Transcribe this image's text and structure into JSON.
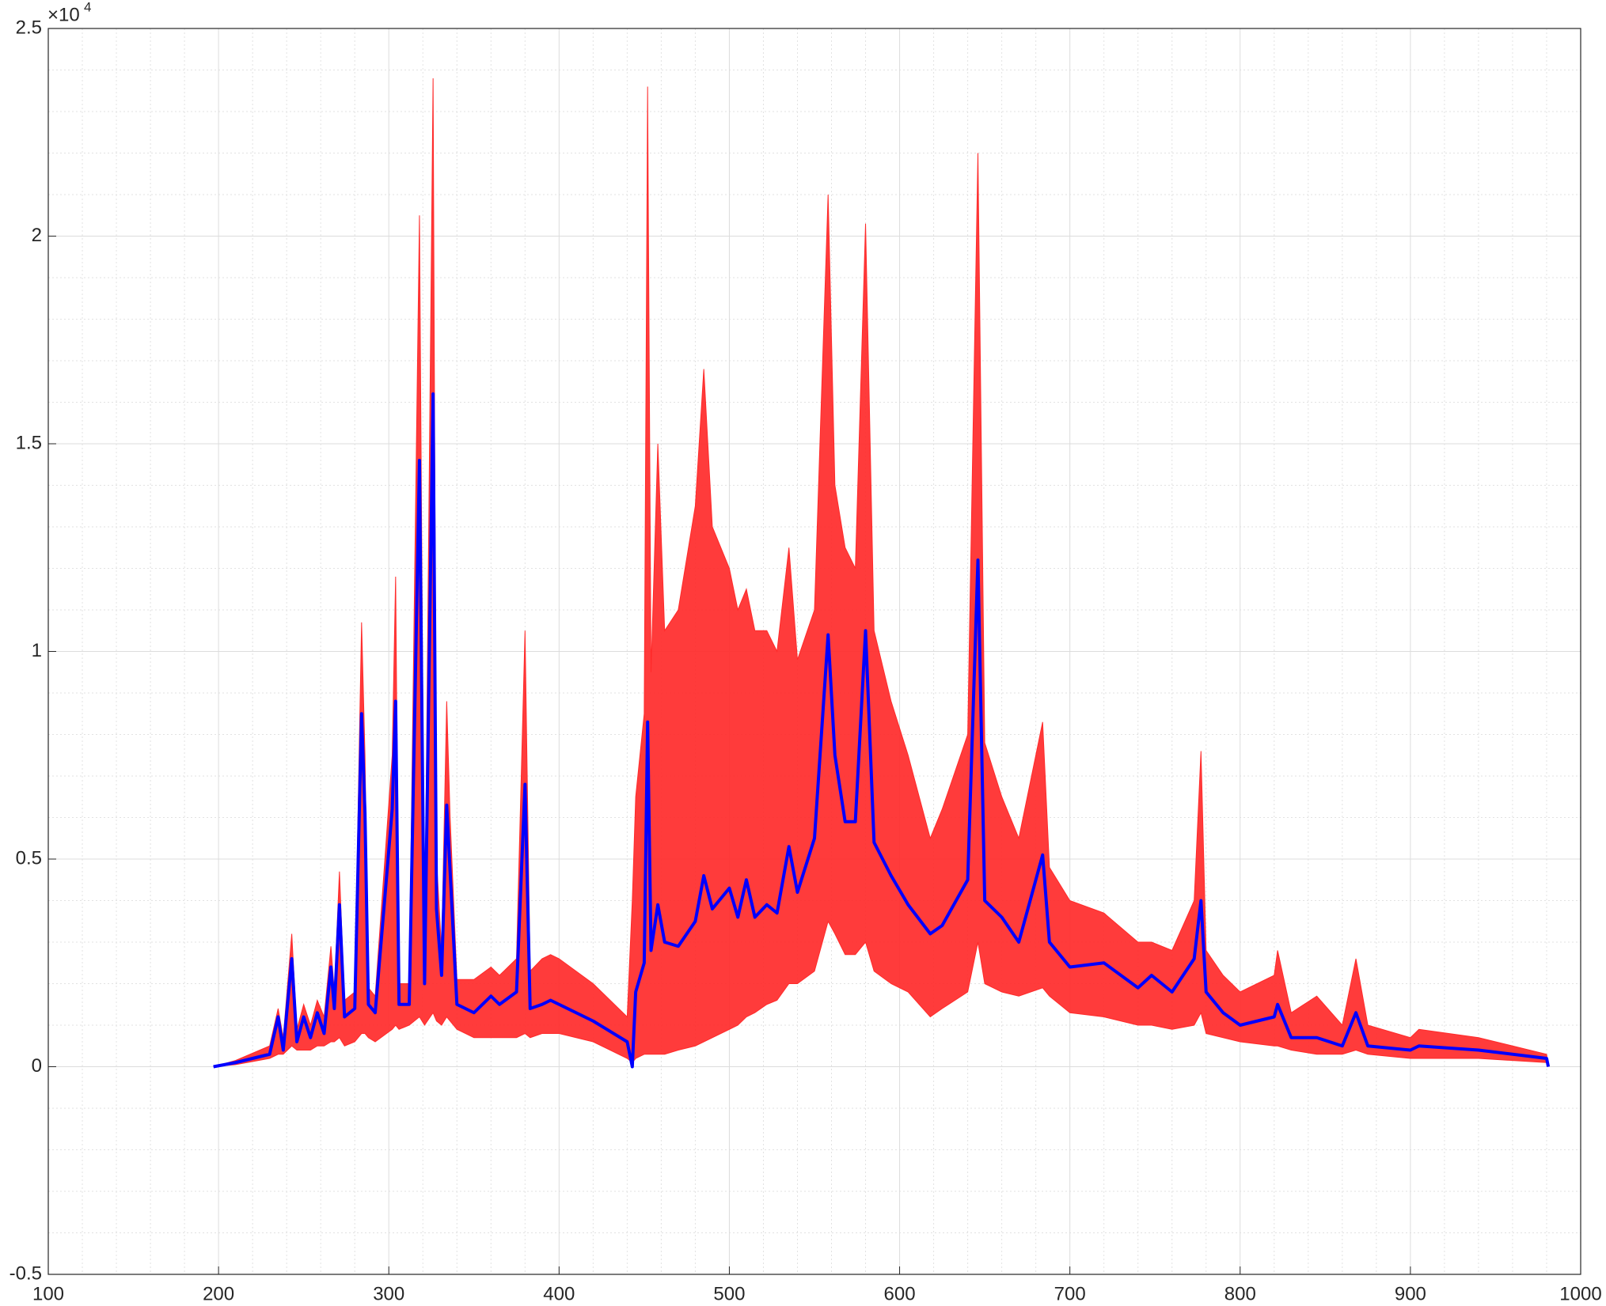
{
  "chart_data": {
    "type": "line",
    "y_multiplier": {
      "base": "×10",
      "exponent": "4"
    },
    "x": [
      197,
      210,
      230,
      235,
      238,
      243,
      246,
      250,
      254,
      258,
      262,
      266,
      268,
      271,
      274,
      280,
      284,
      286,
      288,
      292,
      302,
      304,
      306,
      312,
      318,
      321,
      326,
      328,
      331,
      334,
      336,
      340,
      350,
      360,
      365,
      375,
      380,
      383,
      390,
      395,
      400,
      420,
      440,
      443,
      445,
      450,
      452,
      454,
      458,
      462,
      470,
      480,
      485,
      490,
      500,
      505,
      510,
      515,
      522,
      528,
      535,
      540,
      550,
      558,
      562,
      568,
      574,
      580,
      585,
      595,
      605,
      618,
      625,
      640,
      646,
      650,
      660,
      670,
      684,
      688,
      700,
      720,
      740,
      748,
      760,
      773,
      777,
      780,
      790,
      800,
      820,
      822,
      830,
      845,
      860,
      868,
      875,
      900,
      905,
      940,
      980,
      981
    ],
    "series": [
      {
        "color": "#ff2a2a",
        "upper": [
          0,
          150,
          500,
          1400,
          700,
          3200,
          900,
          1500,
          1000,
          1600,
          1200,
          2900,
          1800,
          4700,
          1600,
          1800,
          10700,
          7500,
          1900,
          1700,
          7500,
          11800,
          2000,
          2000,
          20500,
          2600,
          23800,
          5000,
          2800,
          8800,
          6000,
          2100,
          2100,
          2400,
          2200,
          2600,
          10500,
          2300,
          2600,
          2700,
          2600,
          2000,
          1200,
          4000,
          6500,
          8500,
          23600,
          9500,
          15000,
          10500,
          11000,
          13500,
          16800,
          13000,
          12000,
          11000,
          11500,
          10500,
          10500,
          10000,
          12500,
          9800,
          11000,
          21000,
          14000,
          12500,
          12000,
          20300,
          10500,
          8800,
          7500,
          5500,
          6200,
          8000,
          22000,
          7800,
          6500,
          5500,
          8300,
          4800,
          4000,
          3700,
          3000,
          3000,
          2800,
          4000,
          7600,
          2800,
          2200,
          1800,
          2200,
          2800,
          1300,
          1700,
          1000,
          2600,
          1000,
          700,
          900,
          700,
          300,
          0
        ],
        "lower": [
          0,
          50,
          200,
          300,
          300,
          500,
          400,
          400,
          400,
          500,
          500,
          600,
          600,
          700,
          500,
          600,
          800,
          800,
          700,
          600,
          900,
          1000,
          900,
          1000,
          1200,
          1000,
          1300,
          1100,
          1000,
          1200,
          1100,
          900,
          700,
          700,
          700,
          700,
          800,
          700,
          800,
          800,
          800,
          600,
          200,
          100,
          200,
          300,
          300,
          300,
          300,
          300,
          400,
          500,
          600,
          700,
          900,
          1000,
          1200,
          1300,
          1500,
          1600,
          2000,
          2000,
          2300,
          3500,
          3200,
          2700,
          2700,
          3000,
          2300,
          2000,
          1800,
          1200,
          1400,
          1800,
          3000,
          2000,
          1800,
          1700,
          1900,
          1700,
          1300,
          1200,
          1000,
          1000,
          900,
          1000,
          1300,
          800,
          700,
          600,
          500,
          500,
          400,
          300,
          300,
          400,
          300,
          200,
          200,
          200,
          100,
          0
        ]
      },
      {
        "color": "#0000ff",
        "values": [
          0,
          100,
          300,
          1200,
          400,
          2600,
          600,
          1200,
          700,
          1300,
          800,
          2400,
          1400,
          3900,
          1200,
          1400,
          8500,
          6100,
          1500,
          1300,
          6200,
          8800,
          1500,
          1500,
          14600,
          2000,
          16200,
          3800,
          2200,
          6300,
          4700,
          1500,
          1300,
          1700,
          1500,
          1800,
          6800,
          1400,
          1500,
          1600,
          1500,
          1100,
          600,
          0,
          1800,
          2500,
          8300,
          2800,
          3900,
          3000,
          2900,
          3500,
          4600,
          3800,
          4300,
          3600,
          4500,
          3600,
          3900,
          3700,
          5300,
          4200,
          5500,
          10400,
          7500,
          5900,
          5900,
          10500,
          5400,
          4600,
          3900,
          3200,
          3400,
          4500,
          12200,
          4000,
          3600,
          3000,
          5100,
          3000,
          2400,
          2500,
          1900,
          2200,
          1800,
          2600,
          4000,
          1800,
          1300,
          1000,
          1200,
          1500,
          700,
          700,
          500,
          1300,
          500,
          400,
          500,
          400,
          200,
          0
        ]
      }
    ],
    "xlim": [
      100,
      1000
    ],
    "xticks": [
      100,
      200,
      300,
      400,
      500,
      600,
      700,
      800,
      900,
      1000
    ],
    "ylim": [
      -5000,
      25000
    ],
    "yticks": [
      {
        "value": -5000,
        "label": "-0.5"
      },
      {
        "value": 0,
        "label": "0"
      },
      {
        "value": 5000,
        "label": "0.5"
      },
      {
        "value": 10000,
        "label": "1"
      },
      {
        "value": 15000,
        "label": "1.5"
      },
      {
        "value": 20000,
        "label": "2"
      },
      {
        "value": 25000,
        "label": "2.5"
      }
    ],
    "grid": true,
    "minor_grid": true
  }
}
